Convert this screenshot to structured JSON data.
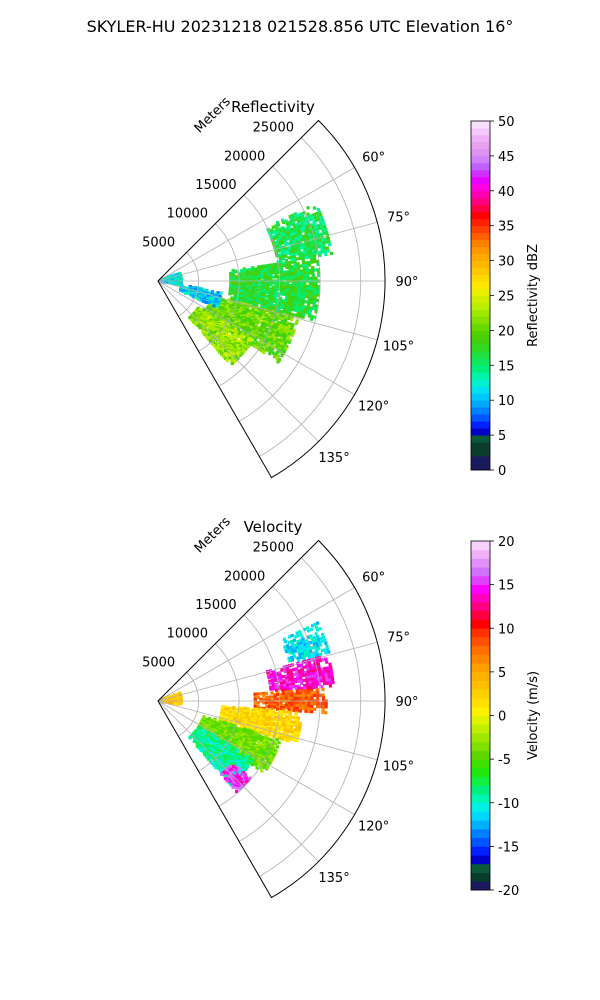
{
  "figure": {
    "suptitle": "SKYLER-HU  20231218  021528.856 UTC Elevation 16°"
  },
  "chart_data": [
    {
      "type": "polar-ppi",
      "title": "Reflectivity",
      "range_label": "Meters",
      "theta_range_deg": [
        45,
        150
      ],
      "r_max_m": 28000,
      "range_ticks": [
        5000,
        10000,
        15000,
        20000,
        25000
      ],
      "range_tick_labels": [
        "5000",
        "10000",
        "15000",
        "20000",
        "25000"
      ],
      "azimuth_ticks": [
        60,
        75,
        90,
        105,
        120,
        135
      ],
      "azimuth_tick_labels": [
        "60°",
        "75°",
        "90°",
        "105°",
        "120°",
        "135°"
      ],
      "grid": true,
      "data_description": "Echo region extending from ~2 km to ~22 km range between ~65° and ~140° azimuth",
      "echo_regions": [
        {
          "az_min": 82,
          "az_max": 105,
          "r_min_m": 9000,
          "r_max_m": 20000,
          "value": 17
        },
        {
          "az_min": 64,
          "az_max": 82,
          "r_min_m": 15000,
          "r_max_m": 22000,
          "value": 16
        },
        {
          "az_min": 105,
          "az_max": 125,
          "r_min_m": 7000,
          "r_max_m": 18000,
          "value": 20
        },
        {
          "az_min": 122,
          "az_max": 140,
          "r_min_m": 6000,
          "r_max_m": 14000,
          "value": 22
        },
        {
          "az_min": 100,
          "az_max": 115,
          "r_min_m": 3000,
          "r_max_m": 8000,
          "value": 11
        },
        {
          "az_min": 70,
          "az_max": 100,
          "r_min_m": 400,
          "r_max_m": 3000,
          "value": 12
        }
      ],
      "colorbar": {
        "label": "Reflectivity dBZ",
        "min": 0,
        "max": 50,
        "ticks": [
          0,
          5,
          10,
          15,
          20,
          25,
          30,
          35,
          40,
          45,
          50
        ]
      }
    },
    {
      "type": "polar-ppi",
      "title": "Velocity",
      "range_label": "Meters",
      "theta_range_deg": [
        45,
        150
      ],
      "r_max_m": 28000,
      "range_ticks": [
        5000,
        10000,
        15000,
        20000,
        25000
      ],
      "range_tick_labels": [
        "5000",
        "10000",
        "15000",
        "20000",
        "25000"
      ],
      "azimuth_ticks": [
        60,
        75,
        90,
        105,
        120,
        135
      ],
      "azimuth_tick_labels": [
        "60°",
        "75°",
        "90°",
        "105°",
        "120°",
        "135°"
      ],
      "grid": true,
      "data_description": "Doppler velocity field; positive (magenta/red) near 75–90° at 15–22 km, negative (green/cyan) toward 115–140°",
      "echo_regions": [
        {
          "az_min": 64,
          "az_max": 75,
          "r_min_m": 17000,
          "r_max_m": 22000,
          "value": -11
        },
        {
          "az_min": 75,
          "az_max": 86,
          "r_min_m": 14000,
          "r_max_m": 22000,
          "value": 14
        },
        {
          "az_min": 86,
          "az_max": 95,
          "r_min_m": 12000,
          "r_max_m": 21000,
          "value": 8
        },
        {
          "az_min": 95,
          "az_max": 108,
          "r_min_m": 8000,
          "r_max_m": 18000,
          "value": 2
        },
        {
          "az_min": 108,
          "az_max": 125,
          "r_min_m": 6000,
          "r_max_m": 16000,
          "value": -4
        },
        {
          "az_min": 122,
          "az_max": 140,
          "r_min_m": 6000,
          "r_max_m": 14000,
          "value": -9
        },
        {
          "az_min": 130,
          "az_max": 140,
          "r_min_m": 12000,
          "r_max_m": 15000,
          "value": 15
        },
        {
          "az_min": 70,
          "az_max": 100,
          "r_min_m": 400,
          "r_max_m": 3000,
          "value": 3
        }
      ],
      "colorbar": {
        "label": "Velocity (m/s)",
        "min": -20,
        "max": 20,
        "ticks": [
          -20,
          -15,
          -10,
          -5,
          0,
          5,
          10,
          15,
          20
        ]
      }
    }
  ]
}
